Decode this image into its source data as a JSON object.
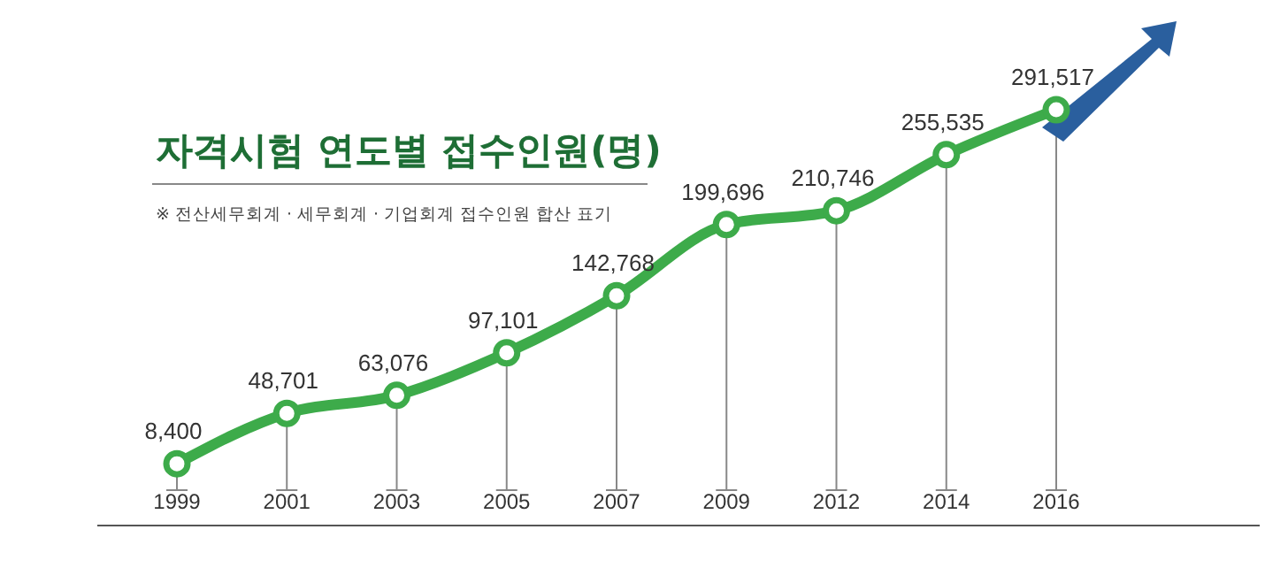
{
  "chart_data": {
    "type": "line",
    "title": "자격시험 연도별 접수인원(명)",
    "subtitle": "※ 전산세무회계 · 세무회계 · 기업회계 접수인원 합산 표기",
    "categories": [
      "1999",
      "2001",
      "2003",
      "2005",
      "2007",
      "2009",
      "2012",
      "2014",
      "2016"
    ],
    "series": [
      {
        "color": "#3dab4a",
        "values": [
          8400,
          48701,
          63076,
          97101,
          142768,
          199696,
          210746,
          255535,
          291517
        ],
        "value_labels": [
          "8,400",
          "48,701",
          "63,076",
          "97,101",
          "142,768",
          "199,696",
          "210,746",
          "255,535",
          "291,517"
        ]
      }
    ],
    "marker": "circle",
    "grid": "x"
  }
}
